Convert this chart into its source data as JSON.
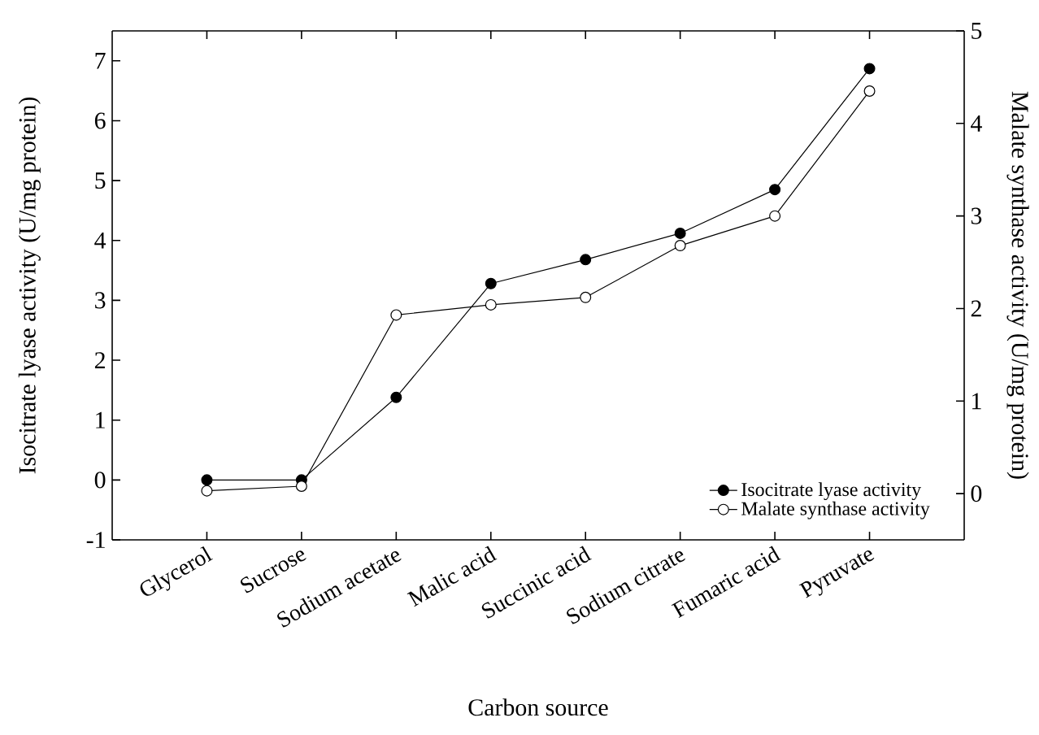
{
  "chart_data": {
    "type": "line",
    "xlabel": "Carbon source",
    "ylabel": "Isocitrate lyase activity (U/mg protein)",
    "y2label": "Malate synthase activity (U/mg protein)",
    "categories": [
      "Glycerol",
      "Sucrose",
      "Sodium acetate",
      "Malic acid",
      "Succinic acid",
      "Sodium citrate",
      "Fumaric acid",
      "Pyruvate"
    ],
    "series": [
      {
        "name": "Isocitrate lyase activity",
        "color": "#000000",
        "values": [
          0,
          0,
          1.38,
          3.28,
          3.68,
          4.12,
          4.85,
          6.87
        ]
      },
      {
        "name": "Malate synthase activity",
        "color": "#000000",
        "axis": "y2",
        "values": [
          0.03,
          0.08,
          1.93,
          2.04,
          2.12,
          2.68,
          3.0,
          4.35
        ]
      }
    ],
    "ylim": [
      -1,
      7.5
    ],
    "yticks": [
      -1,
      0,
      1,
      2,
      3,
      4,
      5,
      6,
      7
    ],
    "y2lim": [
      -0.5,
      5
    ],
    "y2ticks": [
      0,
      1,
      2,
      3,
      4,
      5
    ],
    "marker": "circle",
    "line_style": "solid",
    "legend": "bottom right",
    "grid": false
  }
}
